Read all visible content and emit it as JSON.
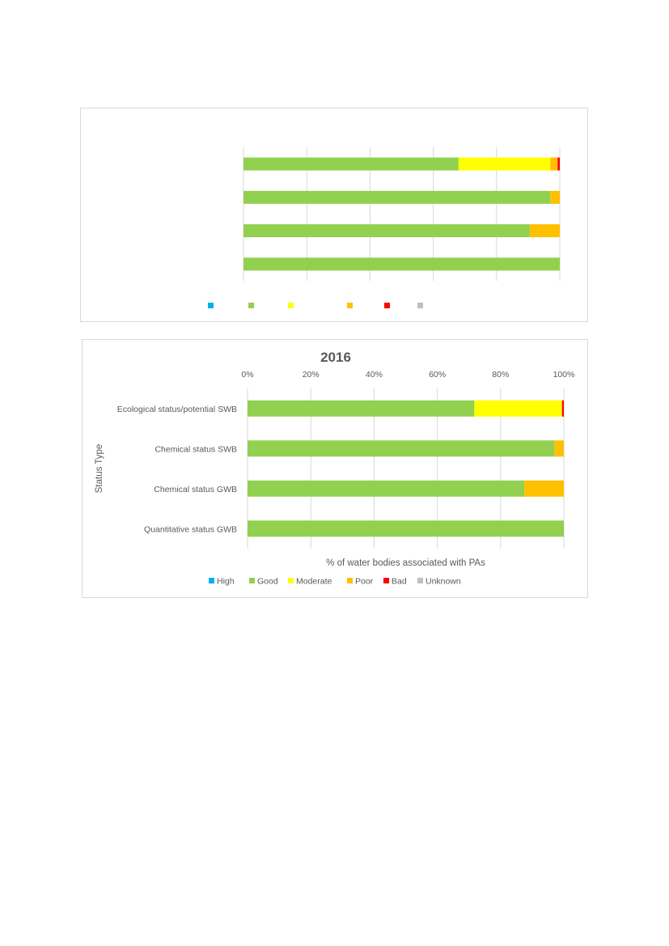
{
  "chart_data": [
    {
      "type": "bar",
      "orientation": "horizontal",
      "stacked": true,
      "title": "",
      "xlabel": "",
      "ylabel": "",
      "categories": [
        "",
        "",
        "",
        ""
      ],
      "xlim": [
        0,
        100
      ],
      "ticks": [
        "",
        "",
        "",
        "",
        "",
        ""
      ],
      "grid": true,
      "legend_position": "bottom",
      "series": [
        {
          "name": "",
          "color": "#00b0f0",
          "values": [
            0,
            0,
            0,
            0
          ]
        },
        {
          "name": "",
          "color": "#92d050",
          "values": [
            68,
            97,
            90.5,
            100
          ]
        },
        {
          "name": "",
          "color": "#ffff00",
          "values": [
            29,
            0,
            0,
            0
          ]
        },
        {
          "name": "",
          "color": "#ffc000",
          "values": [
            2.3,
            3,
            9.5,
            0
          ]
        },
        {
          "name": "",
          "color": "#ff0000",
          "values": [
            0.7,
            0,
            0,
            0
          ]
        },
        {
          "name": "",
          "color": "#bfbfbf",
          "values": [
            0,
            0,
            0,
            0
          ]
        }
      ]
    },
    {
      "type": "bar",
      "orientation": "horizontal",
      "stacked": true,
      "title": "2016",
      "xlabel": "% of water bodies associated with PAs",
      "ylabel": "Status Type",
      "categories": [
        "Ecological status/potential SWB",
        "Chemical status SWB",
        "Chemical status GWB",
        "Quantitative status GWB"
      ],
      "xlim": [
        0,
        100
      ],
      "ticks": [
        "0%",
        "20%",
        "40%",
        "60%",
        "80%",
        "100%"
      ],
      "grid": true,
      "legend_position": "bottom",
      "series": [
        {
          "name": "High",
          "color": "#00b0f0",
          "values": [
            0,
            0,
            0,
            0
          ]
        },
        {
          "name": "Good",
          "color": "#92d050",
          "values": [
            71.7,
            97,
            87.5,
            100
          ]
        },
        {
          "name": "Moderate",
          "color": "#ffff00",
          "values": [
            27.5,
            0,
            0,
            0
          ]
        },
        {
          "name": "Poor",
          "color": "#ffc000",
          "values": [
            0.3,
            3,
            12.5,
            0
          ]
        },
        {
          "name": "Bad",
          "color": "#ff0000",
          "values": [
            0.5,
            0,
            0,
            0
          ]
        },
        {
          "name": "Unknown",
          "color": "#bfbfbf",
          "values": [
            0,
            0,
            0,
            0
          ]
        }
      ]
    }
  ]
}
